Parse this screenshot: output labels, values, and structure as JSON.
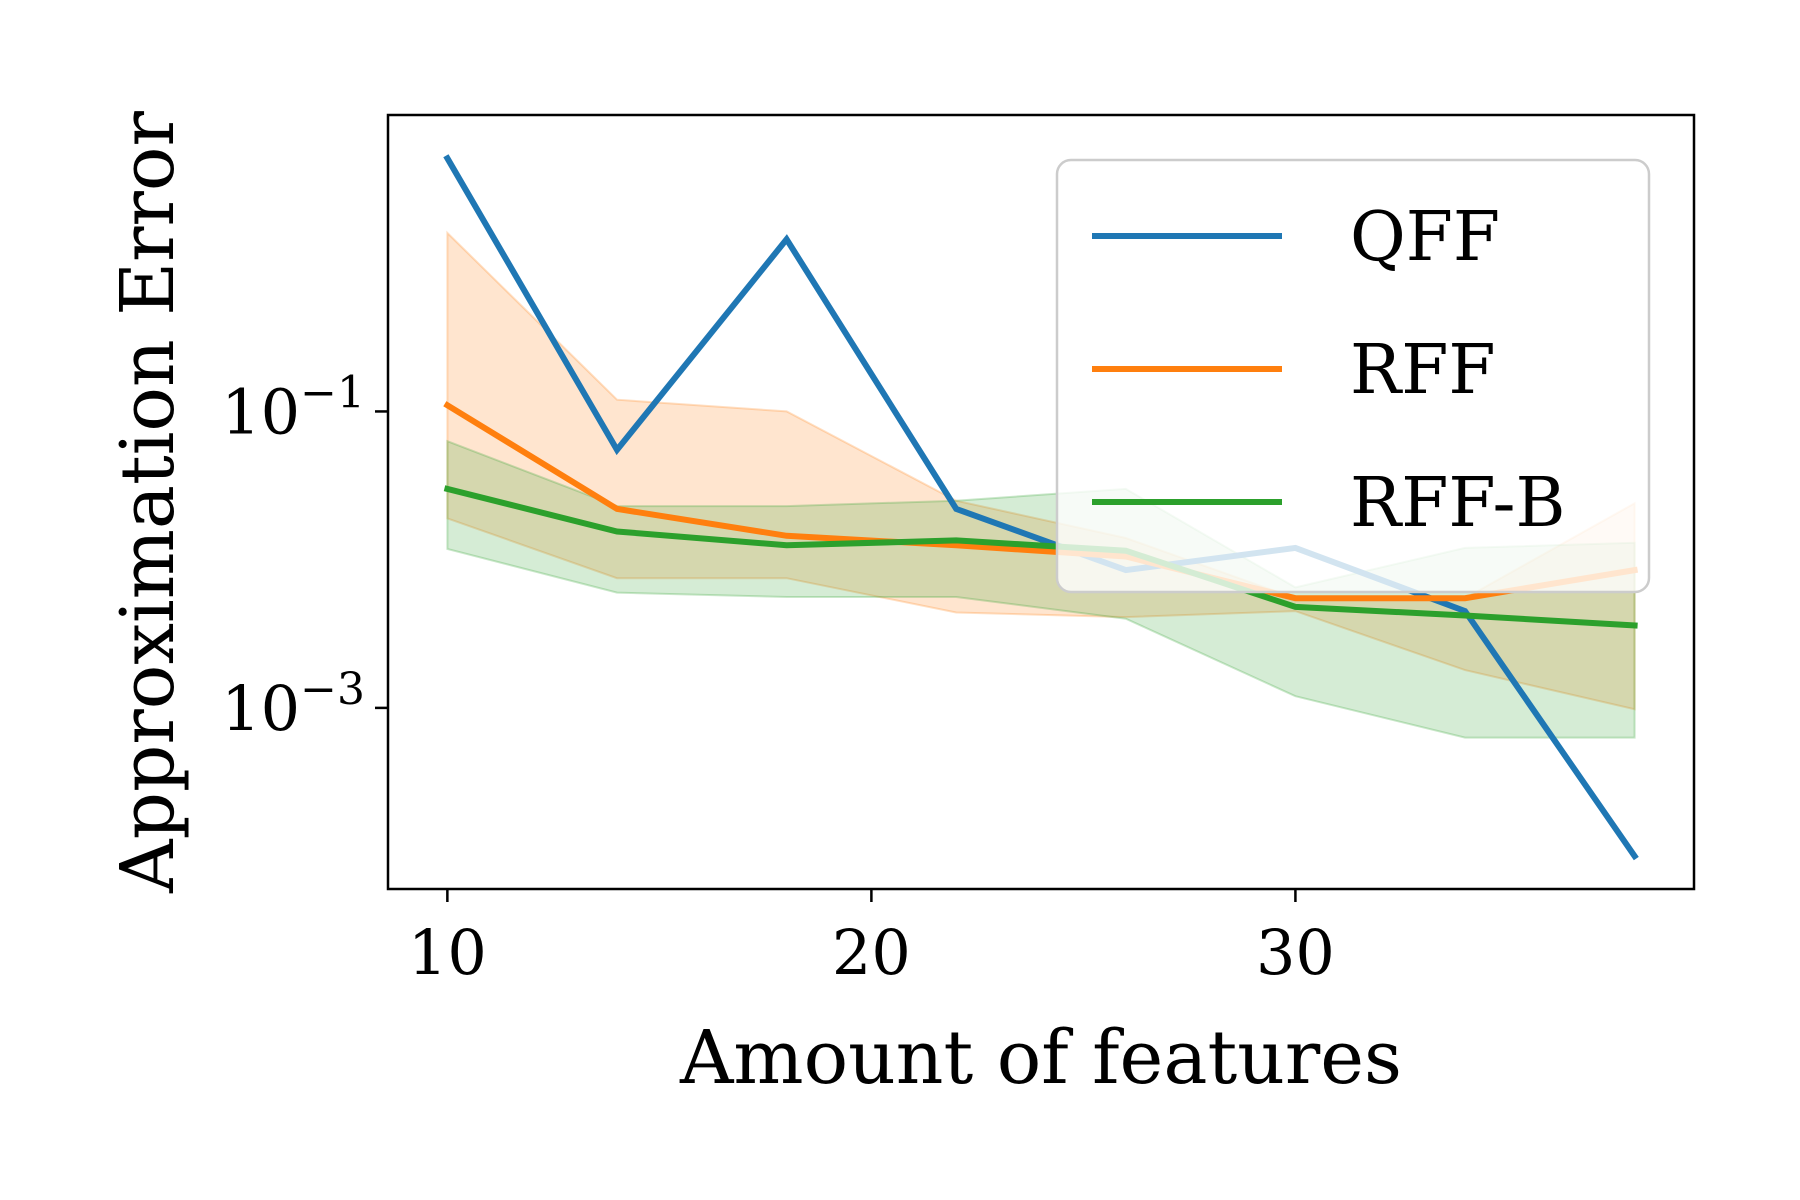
{
  "chart_data": {
    "type": "line",
    "title": "",
    "xlabel": "Amount of features",
    "ylabel": "Approximation Error",
    "yscale": "log",
    "xlim": [
      8.6,
      39.4
    ],
    "ylim": [
      6e-05,
      10
    ],
    "xticks": [
      {
        "value": 10,
        "label": "10"
      },
      {
        "value": 20,
        "label": "20"
      },
      {
        "value": 30,
        "label": "30"
      }
    ],
    "yticks": [
      {
        "value": 0.1,
        "base": "10",
        "exp": "−1"
      },
      {
        "value": 0.001,
        "base": "10",
        "exp": "−3"
      }
    ],
    "x": [
      10,
      14,
      18,
      22,
      26,
      30,
      34,
      38
    ],
    "series": [
      {
        "name": "QFF",
        "color": "#1f77b4",
        "values": [
          5.1,
          0.055,
          1.45,
          0.022,
          0.0085,
          0.012,
          0.0045,
          0.0001
        ]
      },
      {
        "name": "RFF",
        "color": "#ff7f0e",
        "values": [
          0.11,
          0.022,
          0.0145,
          0.0125,
          0.0105,
          0.0055,
          0.0055,
          0.0085
        ],
        "band_upper": [
          1.6,
          0.12,
          0.1,
          0.025,
          0.014,
          0.0055,
          0.0055,
          0.024
        ],
        "band_lower": [
          0.019,
          0.0075,
          0.0075,
          0.0044,
          0.0041,
          0.0045,
          0.0018,
          0.00098
        ]
      },
      {
        "name": "RFF-B",
        "color": "#2ca02c",
        "values": [
          0.03,
          0.0155,
          0.0125,
          0.0135,
          0.0115,
          0.0048,
          0.0042,
          0.0036
        ],
        "band_upper": [
          0.063,
          0.023,
          0.023,
          0.025,
          0.03,
          0.0065,
          0.012,
          0.013
        ],
        "band_lower": [
          0.0118,
          0.006,
          0.0056,
          0.0056,
          0.004,
          0.0012,
          0.00063,
          0.00063
        ]
      }
    ],
    "legend": {
      "position": "top-right"
    },
    "grid": false
  }
}
